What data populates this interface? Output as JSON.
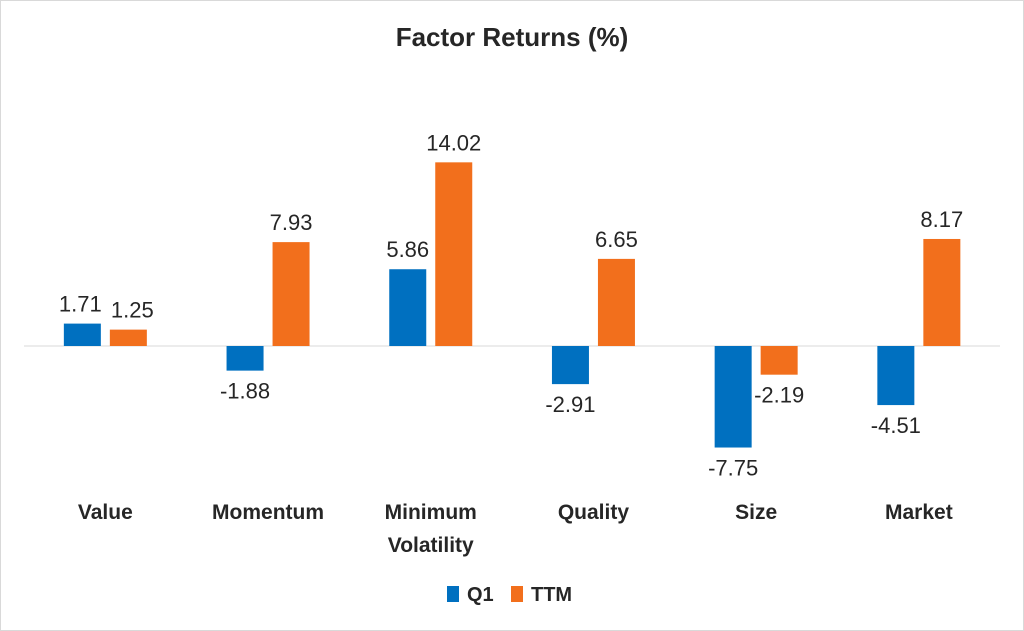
{
  "chart_data": {
    "type": "bar",
    "title": "Factor Returns (%)",
    "categories": [
      [
        "Value"
      ],
      [
        "Momentum"
      ],
      [
        "Minimum",
        "Volatility"
      ],
      [
        "Quality"
      ],
      [
        "Size"
      ],
      [
        "Market"
      ]
    ],
    "series": [
      {
        "name": "Q1",
        "values": [
          1.71,
          -1.88,
          5.86,
          -2.91,
          -7.75,
          -4.51
        ],
        "color": "#0070c0"
      },
      {
        "name": "TTM",
        "values": [
          1.25,
          7.93,
          14.02,
          6.65,
          -2.19,
          8.17
        ],
        "color": "#f26f1c"
      }
    ],
    "data_labels": {
      "Q1": [
        "1.71",
        "-1.88",
        "5.86",
        "-2.91",
        "-7.75",
        "-4.51"
      ],
      "TTM": [
        "1.25",
        "7.93",
        "14.02",
        "6.65",
        "-2.19",
        "8.17"
      ]
    },
    "ylim": [
      -8,
      14.5
    ],
    "grid": false,
    "legend_position": "bottom",
    "xlabel": "",
    "ylabel": ""
  }
}
